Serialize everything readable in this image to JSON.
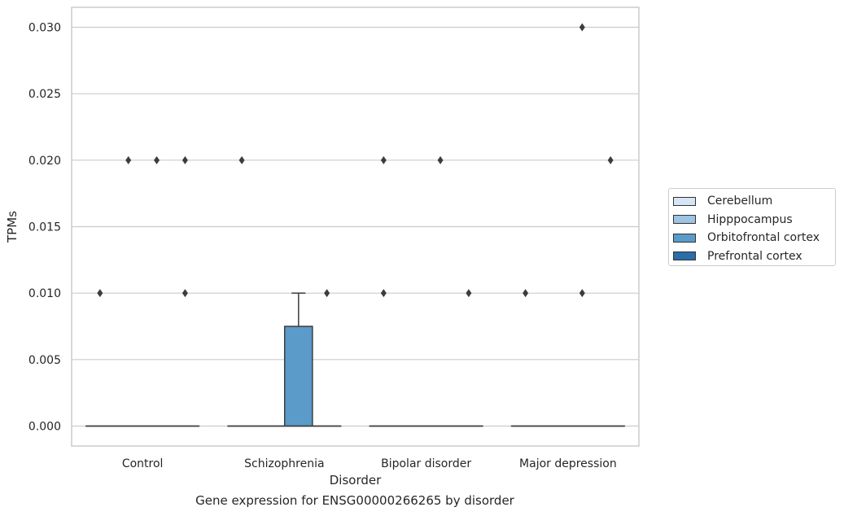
{
  "chart_data": {
    "type": "box",
    "title": "",
    "caption": "Gene expression for ENSG00000266265 by disorder",
    "xlabel": "Disorder",
    "ylabel": "TPMs",
    "ylim": [
      -0.0015,
      0.0315
    ],
    "yticks": [
      0.0,
      0.005,
      0.01,
      0.015,
      0.02,
      0.025,
      0.03
    ],
    "ytick_labels": [
      "0.000",
      "0.005",
      "0.010",
      "0.015",
      "0.020",
      "0.025",
      "0.030"
    ],
    "grid": "horizontal",
    "legend_position": "right",
    "categories": [
      "Control",
      "Schizophrenia",
      "Bipolar disorder",
      "Major depression"
    ],
    "series": [
      {
        "name": "Cerebellum",
        "color": "#d6e5f3",
        "boxes": [
          {
            "q1": 0,
            "median": 0,
            "q3": 0,
            "whisker_low": 0,
            "whisker_high": 0,
            "outliers": [
              0.01
            ]
          },
          {
            "q1": 0,
            "median": 0,
            "q3": 0,
            "whisker_low": 0,
            "whisker_high": 0,
            "outliers": [
              0.02
            ]
          },
          {
            "q1": 0,
            "median": 0,
            "q3": 0,
            "whisker_low": 0,
            "whisker_high": 0,
            "outliers": [
              0.01,
              0.02
            ]
          },
          {
            "q1": 0,
            "median": 0,
            "q3": 0,
            "whisker_low": 0,
            "whisker_high": 0,
            "outliers": [
              0.01
            ]
          }
        ]
      },
      {
        "name": "Hipppocampus",
        "color": "#9dc4e0",
        "boxes": [
          {
            "q1": 0,
            "median": 0,
            "q3": 0,
            "whisker_low": 0,
            "whisker_high": 0,
            "outliers": [
              0.02
            ]
          },
          {
            "q1": 0,
            "median": 0,
            "q3": 0,
            "whisker_low": 0,
            "whisker_high": 0,
            "outliers": []
          },
          {
            "q1": 0,
            "median": 0,
            "q3": 0,
            "whisker_low": 0,
            "whisker_high": 0,
            "outliers": []
          },
          {
            "q1": 0,
            "median": 0,
            "q3": 0,
            "whisker_low": 0,
            "whisker_high": 0,
            "outliers": []
          }
        ]
      },
      {
        "name": "Orbitofrontal cortex",
        "color": "#5a9bc9",
        "boxes": [
          {
            "q1": 0,
            "median": 0,
            "q3": 0,
            "whisker_low": 0,
            "whisker_high": 0,
            "outliers": [
              0.02
            ]
          },
          {
            "q1": 0,
            "median": 0,
            "q3": 0.0075,
            "whisker_low": 0,
            "whisker_high": 0.01,
            "outliers": []
          },
          {
            "q1": 0,
            "median": 0,
            "q3": 0,
            "whisker_low": 0,
            "whisker_high": 0,
            "outliers": [
              0.02
            ]
          },
          {
            "q1": 0,
            "median": 0,
            "q3": 0,
            "whisker_low": 0,
            "whisker_high": 0,
            "outliers": [
              0.01,
              0.03
            ]
          }
        ]
      },
      {
        "name": "Prefrontal cortex",
        "color": "#2c6ca8",
        "boxes": [
          {
            "q1": 0,
            "median": 0,
            "q3": 0,
            "whisker_low": 0,
            "whisker_high": 0,
            "outliers": [
              0.01,
              0.02
            ]
          },
          {
            "q1": 0,
            "median": 0,
            "q3": 0,
            "whisker_low": 0,
            "whisker_high": 0,
            "outliers": [
              0.01
            ]
          },
          {
            "q1": 0,
            "median": 0,
            "q3": 0,
            "whisker_low": 0,
            "whisker_high": 0,
            "outliers": [
              0.01
            ]
          },
          {
            "q1": 0,
            "median": 0,
            "q3": 0,
            "whisker_low": 0,
            "whisker_high": 0,
            "outliers": [
              0.02
            ]
          }
        ]
      }
    ]
  }
}
